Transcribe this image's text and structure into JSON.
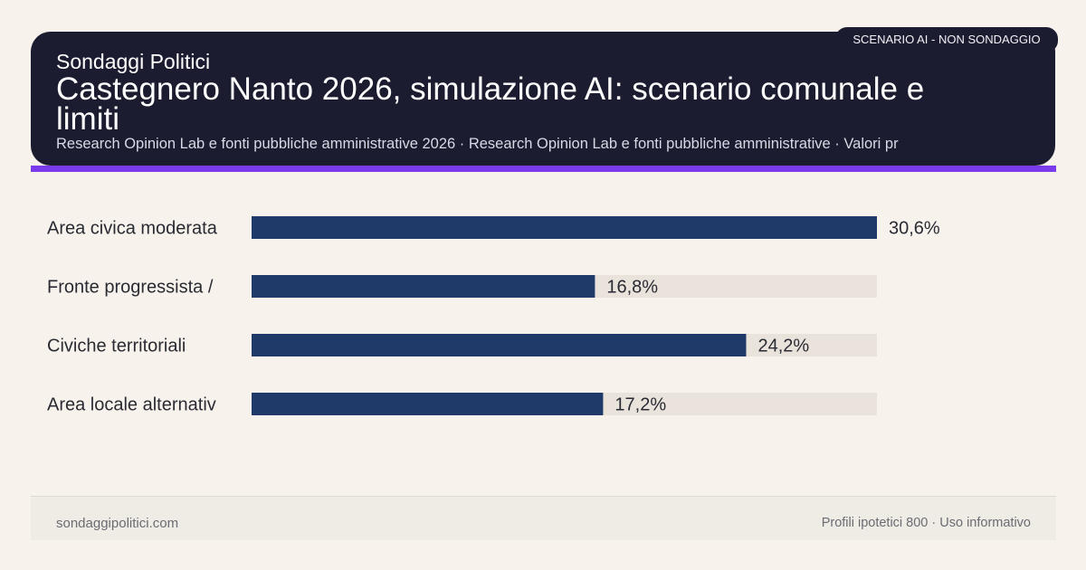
{
  "header": {
    "brand": "Sondaggi Politici",
    "title": "Castegnero Nanto 2026, simulazione AI: scenario comunale e limiti",
    "subtitle": "Research Opinion Lab e fonti pubbliche amministrative 2026 · Research Opinion Lab e fonti pubbliche amministrative · Valori pr",
    "badge": "SCENARIO AI - NON SONDAGGIO"
  },
  "colors": {
    "header_bg": "#1c1c30",
    "accent": "#7c3aed",
    "bar": "#1f3a68",
    "bar_track": "#e9e3dc",
    "background": "#f7f3ec"
  },
  "chart_data": {
    "type": "bar",
    "orientation": "horizontal",
    "categories": [
      "Area civica moderata",
      "Fronte progressista /",
      "Civiche territoriali",
      "Area locale alternativ"
    ],
    "values": [
      30.6,
      16.8,
      24.2,
      17.2
    ],
    "value_labels": [
      "30,6%",
      "16,8%",
      "24,2%",
      "17,2%"
    ],
    "xlim": [
      0,
      30.6
    ],
    "grid": false,
    "legend": "none"
  },
  "footer": {
    "left": "sondaggipolitici.com",
    "right": "Profili ipotetici 800 · Uso informativo"
  }
}
